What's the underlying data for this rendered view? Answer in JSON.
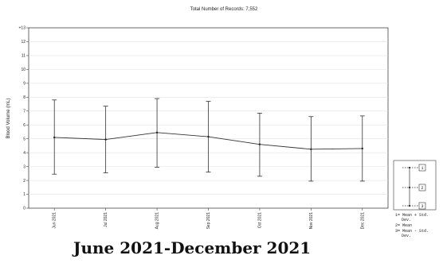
{
  "chart_data": {
    "type": "line",
    "title": "Total Number of Records: 7,552",
    "ylabel": "Blood Volume (mL)",
    "xlabel": "",
    "categories": [
      "Jun 2021",
      "Jul 2021",
      "Aug 2021",
      "Sep 2021",
      "Oct 2021",
      "Nov 2021",
      "Dec 2021"
    ],
    "ylim": [
      0,
      13
    ],
    "yticks": [
      "0",
      "1",
      "2",
      "3",
      "4",
      "5",
      "6",
      "7",
      "8",
      "9",
      "10",
      "11",
      "12",
      "+13"
    ],
    "grid": true,
    "series": [
      {
        "values": [
          5.1,
          4.95,
          5.45,
          5.15,
          4.6,
          4.25,
          4.3
        ],
        "upper": [
          7.8,
          7.35,
          7.9,
          7.7,
          6.85,
          6.6,
          6.65
        ],
        "lower": [
          2.45,
          2.55,
          2.95,
          2.6,
          2.3,
          1.95,
          1.95
        ]
      }
    ],
    "legend": {
      "position": "right",
      "markers": [
        "1",
        "2",
        "3"
      ],
      "entries": [
        "1= Mean + Std. Dev.",
        "2= Mean",
        "3= Mean - Std. Dev."
      ]
    }
  },
  "caption": "June 2021-December 2021"
}
